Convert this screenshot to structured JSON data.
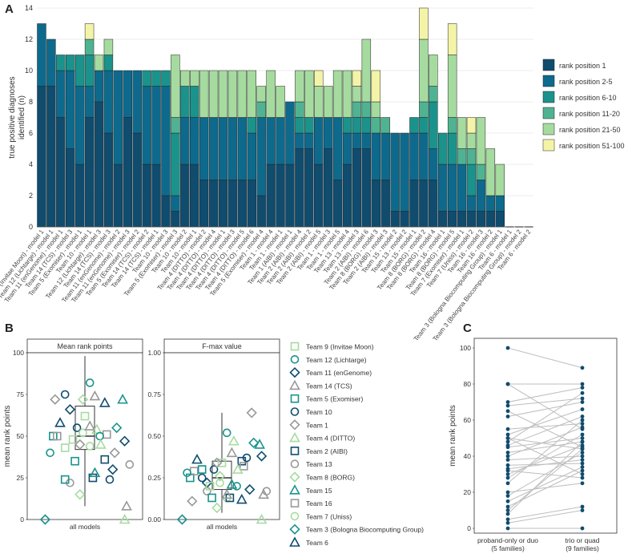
{
  "panels": {
    "a": "A",
    "b": "B",
    "c": "C"
  },
  "chart_data": [
    {
      "type": "bar",
      "stacked": true,
      "panel": "A",
      "ylabel": "true positive diagnoses\nidentified (n)",
      "ylim": [
        0,
        14
      ],
      "yticks": [
        0,
        2,
        4,
        6,
        8,
        10,
        12,
        14
      ],
      "grid": true,
      "legend_position": "right",
      "series_names": [
        "rank position 1",
        "rank position 2-5",
        "rank position 6-10",
        "rank position 11-20",
        "rank position 21-50",
        "rank position 51-100"
      ],
      "colors": [
        "#0f4c6e",
        "#0d6a8c",
        "#1a938c",
        "#4fb392",
        "#a6dba0",
        "#f4f4a8"
      ],
      "categories": [
        "Team 9 (Invitae Moon) - model 1",
        "Team 12 (Lichtarge) - model 1",
        "Team 11 (enGenome) - model 1",
        "Team 14 (TCS) - model 3",
        "Team 5 (Exomiser) - model 1",
        "Team 10 - model 1",
        "Team 12 (Lichtarge) - model 3",
        "Team 14 (TCS) - model 3",
        "Team 11 (enGenome) - model 2",
        "Team 11 (enGenome) - model 3",
        "Team 5 (Exomiser) - model 2",
        "Team 14 (TCS) - model 2",
        "Team 14 (TCS) - model 1",
        "Team 10 - model 3",
        "Team 5 (Exomiser) - model 3",
        "Team 10 - model 2",
        "Team 10 - model 1",
        "Team 4 (DITTO) - model 2",
        "Team 4 (DITTO) - model 4",
        "Team 4 (DITTO) - model 1",
        "Team 4 (DITTO) - model 3",
        "Team 4 (DITTO) - model 5",
        "Team 4 (DITTO) - model 6",
        "Team 5 (Exomiser) - model 4",
        "Team 1 - model 4",
        "Team 1 - model 1",
        "Team 1 (AIBI) - model 1",
        "Team 2 (AIBI) - model 4",
        "Team 2 (AIBI) - model 2",
        "Team 2 (AIBI) - model 5",
        "Team 1 - model 3",
        "Team 1 - model 5",
        "Team 13 - model 4",
        "Team 13 - model 3",
        "Team 2 (AIBI) - model 6",
        "Team 8 (BORG) - model 3",
        "Team 2 (AIBI) - model 3",
        "Team 15 - model 2",
        "Team 13 - model 2",
        "Team 15 - model 1",
        "Team 8 (BORG) - model 2",
        "Team 8 (BORG) - model 4",
        "Team 16 - model 1",
        "Team 8 (BORG) - model 5",
        "Team 7 (Exomiser) - model 1",
        "Team 7 (Uniss) - model 2",
        "Team 16 - model 3",
        "Team 16 - model 2",
        "Team 3 (Bologna Biocomputing Group) - model 1",
        "Team 6 - model 1",
        "Team 3 (Bologna Biocomputing Group) - model 2",
        "Team 6 - model 2"
      ],
      "series": [
        {
          "name": "rank position 1",
          "values": [
            9,
            9,
            7,
            5,
            4,
            7,
            8,
            6,
            4,
            7,
            6,
            4,
            4,
            2,
            1,
            4,
            4,
            3,
            3,
            3,
            3,
            3,
            3,
            2,
            4,
            4,
            4,
            5,
            5,
            4,
            5,
            3,
            4,
            5,
            5,
            3,
            3,
            1,
            1,
            3,
            3,
            3,
            1,
            1,
            1,
            1,
            1,
            1,
            1,
            0,
            0,
            0
          ]
        },
        {
          "name": "rank position 2-5",
          "values": [
            4,
            3,
            3,
            5,
            5,
            2,
            2,
            4,
            6,
            3,
            4,
            5,
            5,
            7,
            1,
            3,
            3,
            4,
            4,
            4,
            4,
            4,
            3,
            5,
            3,
            3,
            4,
            1,
            1,
            3,
            2,
            4,
            2,
            1,
            1,
            3,
            3,
            5,
            5,
            3,
            3,
            2,
            3,
            3,
            3,
            1,
            2,
            1,
            1,
            0,
            0,
            0
          ]
        },
        {
          "name": "rank position 6-10",
          "values": [
            0,
            0,
            1,
            1,
            2,
            2,
            0,
            1,
            0,
            0,
            0,
            1,
            1,
            1,
            4,
            2,
            2,
            0,
            0,
            0,
            0,
            0,
            1,
            0,
            0,
            0,
            0,
            1,
            1,
            0,
            0,
            0,
            1,
            1,
            1,
            0,
            0,
            0,
            0,
            1,
            1,
            3,
            2,
            2,
            0,
            2,
            0,
            0,
            0,
            0,
            0,
            0
          ]
        },
        {
          "name": "rank position 11-20",
          "values": [
            0,
            0,
            0,
            0,
            0,
            1,
            0,
            0,
            0,
            0,
            0,
            0,
            0,
            0,
            1,
            0,
            0,
            0,
            0,
            0,
            0,
            0,
            0,
            1,
            0,
            0,
            0,
            1,
            0,
            0,
            0,
            0,
            0,
            1,
            1,
            1,
            1,
            0,
            0,
            0,
            1,
            1,
            0,
            1,
            1,
            1,
            1,
            0,
            0,
            0,
            0,
            0
          ]
        },
        {
          "name": "rank position 21-50",
          "values": [
            0,
            0,
            0,
            0,
            0,
            0,
            1,
            1,
            0,
            0,
            0,
            0,
            0,
            0,
            4,
            1,
            1,
            3,
            3,
            3,
            3,
            3,
            3,
            1,
            3,
            2,
            0,
            2,
            3,
            2,
            2,
            3,
            3,
            1,
            4,
            1,
            0,
            0,
            0,
            0,
            4,
            2,
            0,
            4,
            2,
            1,
            3,
            3,
            2,
            0,
            0,
            0
          ]
        },
        {
          "name": "rank position 51-100",
          "values": [
            0,
            0,
            0,
            0,
            0,
            1,
            0,
            0,
            0,
            0,
            0,
            0,
            0,
            0,
            0,
            0,
            0,
            0,
            0,
            0,
            0,
            0,
            0,
            0,
            0,
            0,
            0,
            0,
            0,
            1,
            0,
            0,
            0,
            1,
            0,
            2,
            0,
            0,
            0,
            0,
            2,
            0,
            0,
            2,
            0,
            1,
            0,
            0,
            0,
            0,
            0,
            0
          ]
        }
      ]
    },
    {
      "type": "scatter",
      "panel": "B",
      "ylabel": "mean rank points",
      "facets": [
        {
          "title": "Mean rank points",
          "ylim": [
            0,
            100
          ],
          "yticks": [
            "0",
            "25",
            "50",
            "75",
            "100"
          ],
          "xlabel": "all models",
          "box": {
            "q1": 42,
            "median": 50,
            "q3": 68,
            "whisker_low": 8,
            "whisker_high": 98
          },
          "points": [
            [
              0.3,
              43
            ],
            [
              0.55,
              82
            ],
            [
              0.35,
              66
            ],
            [
              0.6,
              74
            ],
            [
              0.18,
              50
            ],
            [
              0.42,
              55
            ],
            [
              0.8,
              40
            ],
            [
              0.62,
              54
            ],
            [
              0.7,
              36
            ],
            [
              0.35,
              22
            ],
            [
              0.48,
              72
            ],
            [
              0.88,
              72
            ],
            [
              0.72,
              51
            ],
            [
              0.55,
              44
            ],
            [
              0.1,
              0
            ],
            [
              0.25,
              58
            ],
            [
              0.5,
              62
            ],
            [
              0.65,
              50
            ],
            [
              0.78,
              30
            ],
            [
              0.92,
              8
            ],
            [
              0.4,
              35
            ],
            [
              0.3,
              75
            ],
            [
              0.2,
              72
            ],
            [
              0.9,
              0
            ],
            [
              0.58,
              25
            ],
            [
              0.95,
              33
            ],
            [
              0.45,
              15
            ],
            [
              0.6,
              28
            ],
            [
              0.22,
              50
            ],
            [
              0.48,
              52
            ],
            [
              0.82,
              55
            ],
            [
              0.7,
              70
            ],
            [
              0.38,
              48
            ],
            [
              0.15,
              40
            ],
            [
              0.9,
              47
            ],
            [
              0.55,
              56
            ],
            [
              0.3,
              24
            ],
            [
              0.75,
              24
            ],
            [
              0.45,
              45
            ],
            [
              0.66,
              45
            ]
          ]
        },
        {
          "title": "F-max value",
          "ylim": [
            0,
            1
          ],
          "yticks": [
            "0.00",
            "0.25",
            "0.50",
            "0.75",
            "1.00"
          ],
          "xlabel": "all models",
          "box": {
            "q1": 0.18,
            "median": 0.25,
            "q3": 0.35,
            "whisker_low": 0.04,
            "whisker_high": 0.64
          },
          "points": [
            [
              0.3,
              0.3
            ],
            [
              0.55,
              0.52
            ],
            [
              0.35,
              0.22
            ],
            [
              0.6,
              0.4
            ],
            [
              0.18,
              0.25
            ],
            [
              0.42,
              0.3
            ],
            [
              0.8,
              0.64
            ],
            [
              0.62,
              0.47
            ],
            [
              0.7,
              0.35
            ],
            [
              0.35,
              0.17
            ],
            [
              0.48,
              0.26
            ],
            [
              0.88,
              0.45
            ],
            [
              0.72,
              0.32
            ],
            [
              0.55,
              0.13
            ],
            [
              0.1,
              0.0
            ],
            [
              0.25,
              0.36
            ],
            [
              0.5,
              0.34
            ],
            [
              0.65,
              0.2
            ],
            [
              0.78,
              0.18
            ],
            [
              0.92,
              0.15
            ],
            [
              0.4,
              0.13
            ],
            [
              0.3,
              0.25
            ],
            [
              0.2,
              0.11
            ],
            [
              0.9,
              0.0
            ],
            [
              0.58,
              0.13
            ],
            [
              0.95,
              0.17
            ],
            [
              0.45,
              0.07
            ],
            [
              0.6,
              0.21
            ],
            [
              0.22,
              0.29
            ],
            [
              0.48,
              0.22
            ],
            [
              0.82,
              0.46
            ],
            [
              0.7,
              0.12
            ],
            [
              0.38,
              0.2
            ],
            [
              0.15,
              0.28
            ],
            [
              0.9,
              0.38
            ],
            [
              0.55,
              0.15
            ],
            [
              0.3,
              0.3
            ],
            [
              0.75,
              0.37
            ],
            [
              0.45,
              0.34
            ],
            [
              0.66,
              0.3
            ]
          ]
        }
      ],
      "legend": [
        {
          "name": "Team 9 (Invitae Moon)",
          "shape": "square",
          "color": "#a6dba0",
          "filled": false
        },
        {
          "name": "Team 12 (Lichtarge)",
          "shape": "circle",
          "color": "#1a938c",
          "filled": false
        },
        {
          "name": "Team 11 (enGenome)",
          "shape": "diamond",
          "color": "#0f4c6e",
          "filled": false
        },
        {
          "name": "Team 14 (TCS)",
          "shape": "triangle",
          "color": "#999999",
          "filled": false
        },
        {
          "name": "Team 5 (Exomiser)",
          "shape": "square",
          "color": "#1a938c",
          "filled": false
        },
        {
          "name": "Team 10",
          "shape": "circle",
          "color": "#0f4c6e",
          "filled": false
        },
        {
          "name": "Team 1",
          "shape": "diamond",
          "color": "#999999",
          "filled": false
        },
        {
          "name": "Team 4 (DITTO)",
          "shape": "triangle",
          "color": "#a6dba0",
          "filled": false
        },
        {
          "name": "Team 2 (AIBI)",
          "shape": "square",
          "color": "#0f4c6e",
          "filled": false
        },
        {
          "name": "Team 13",
          "shape": "circle",
          "color": "#999999",
          "filled": false
        },
        {
          "name": "Team 8 (BORG)",
          "shape": "diamond",
          "color": "#a6dba0",
          "filled": false
        },
        {
          "name": "Team 15",
          "shape": "triangle",
          "color": "#1a938c",
          "filled": false
        },
        {
          "name": "Team 16",
          "shape": "square",
          "color": "#999999",
          "filled": false
        },
        {
          "name": "Team 7 (Uniss)",
          "shape": "circle",
          "color": "#a6dba0",
          "filled": false
        },
        {
          "name": "Team 3 (Bologna Biocomputing Group)",
          "shape": "diamond",
          "color": "#1a938c",
          "filled": false
        },
        {
          "name": "Team 6",
          "shape": "triangle",
          "color": "#0f4c6e",
          "filled": false
        }
      ]
    },
    {
      "type": "line",
      "panel": "C",
      "ylabel": "mean rank points",
      "ylim": [
        0,
        100
      ],
      "yticks": [
        "0",
        "20",
        "40",
        "60",
        "80",
        "100"
      ],
      "categories": [
        "proband-only or duo\n(5 families)",
        "trio or quad\n(9 families)"
      ],
      "pairs": [
        [
          100,
          89
        ],
        [
          80,
          80
        ],
        [
          80,
          55
        ],
        [
          70,
          78
        ],
        [
          68,
          72
        ],
        [
          65,
          45
        ],
        [
          62,
          70
        ],
        [
          55,
          58
        ],
        [
          52,
          66
        ],
        [
          50,
          44
        ],
        [
          50,
          30
        ],
        [
          48,
          75
        ],
        [
          46,
          62
        ],
        [
          45,
          50
        ],
        [
          42,
          48
        ],
        [
          40,
          56
        ],
        [
          38,
          40
        ],
        [
          35,
          36
        ],
        [
          33,
          38
        ],
        [
          32,
          28
        ],
        [
          30,
          46
        ],
        [
          28,
          52
        ],
        [
          25,
          60
        ],
        [
          20,
          25
        ],
        [
          18,
          42
        ],
        [
          15,
          34
        ],
        [
          12,
          32
        ],
        [
          10,
          44
        ],
        [
          8,
          48
        ],
        [
          5,
          12
        ],
        [
          3,
          10
        ],
        [
          0,
          0
        ]
      ]
    }
  ]
}
